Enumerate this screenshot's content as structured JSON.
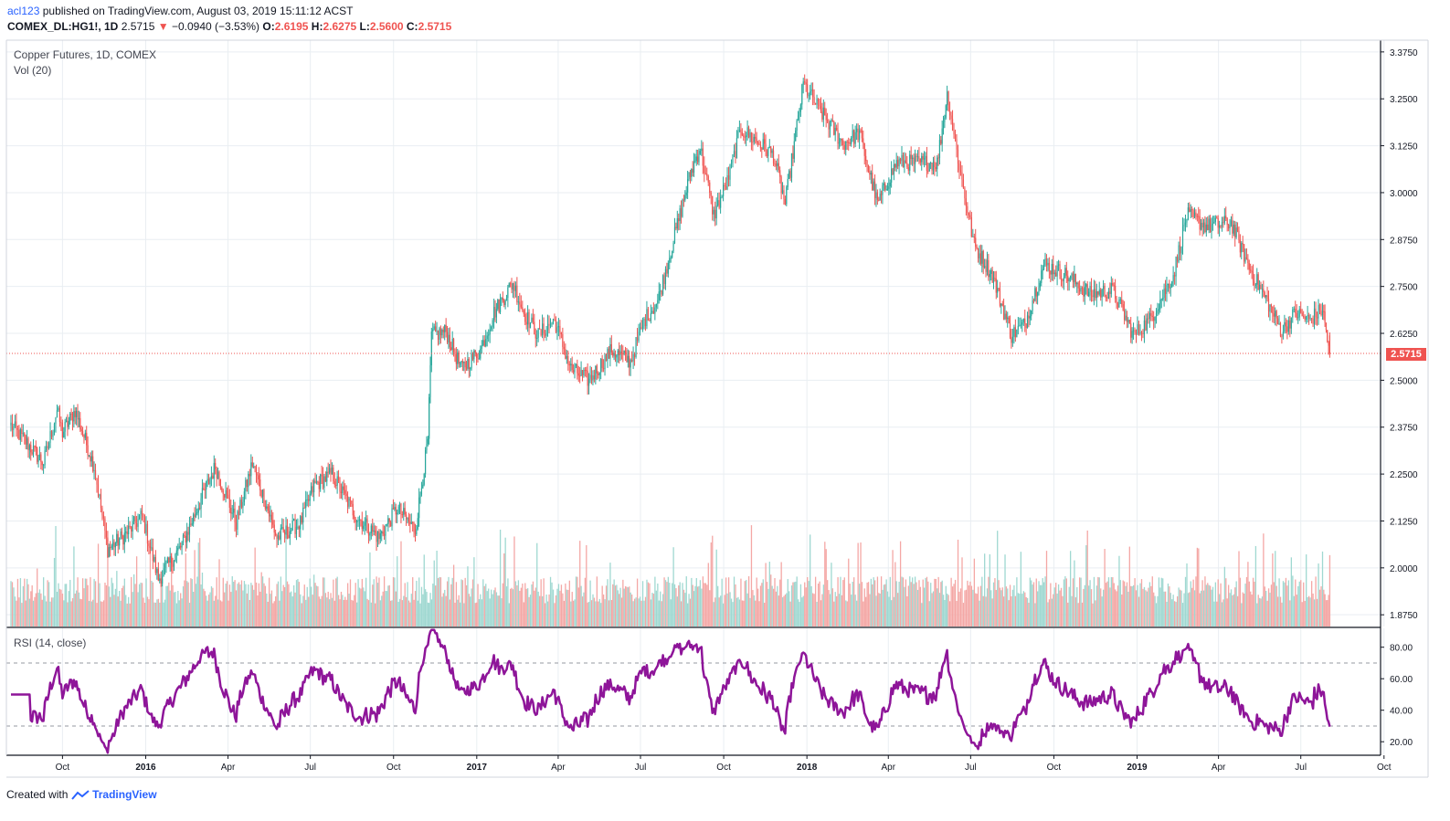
{
  "header": {
    "user": "acl123",
    "published_text": "published on TradingView.com, August 03, 2019 15:11:12 ACST",
    "symbol": "COMEX_DL:HG1!, 1D",
    "last": "2.5715",
    "change_arrow": "▼",
    "change": "−0.0940 (−3.53%)",
    "o_label": "O:",
    "o_val": "2.6195",
    "h_label": "H:",
    "h_val": "2.6275",
    "l_label": "L:",
    "l_val": "2.5600",
    "c_label": "C:",
    "c_val": "2.5715"
  },
  "legends": {
    "main_title": "Copper Futures, 1D, COMEX",
    "volume": "Vol (20)",
    "rsi": "RSI (14, close)"
  },
  "footer": {
    "created": "Created with",
    "brand": "TradingView"
  },
  "colors": {
    "up": "#26a69a",
    "down": "#ef5350",
    "vol_up": "#9fd8d1",
    "vol_down": "#f4a7a5",
    "rsi": "#8e1599",
    "grid": "#e9eef2"
  },
  "chart_data": [
    {
      "type": "candlestick",
      "title": "Copper Futures, 1D, COMEX",
      "ylim": [
        1.8438,
        3.4063
      ],
      "y_ticks": [
        "3.3750",
        "3.2500",
        "3.1250",
        "3.0000",
        "2.8750",
        "2.7500",
        "2.6250",
        "2.5000",
        "2.3750",
        "2.2500",
        "2.1250",
        "2.0000",
        "1.8750"
      ],
      "x_ticks": [
        "Oct",
        "2016",
        "Apr",
        "Jul",
        "Oct",
        "2017",
        "Apr",
        "Jul",
        "Oct",
        "2018",
        "Apr",
        "Jul",
        "Oct",
        "2019",
        "Apr",
        "Jul",
        "Oct"
      ],
      "last_price": "2.5715",
      "close_path": [
        [
          "2015-08-05",
          2.38
        ],
        [
          "2015-08-20",
          2.34
        ],
        [
          "2015-09-10",
          2.28
        ],
        [
          "2015-09-25",
          2.42
        ],
        [
          "2015-10-01",
          2.36
        ],
        [
          "2015-10-15",
          2.42
        ],
        [
          "2015-11-05",
          2.27
        ],
        [
          "2015-11-20",
          2.05
        ],
        [
          "2015-12-10",
          2.09
        ],
        [
          "2015-12-28",
          2.14
        ],
        [
          "2016-01-15",
          1.97
        ],
        [
          "2016-02-10",
          2.06
        ],
        [
          "2016-03-05",
          2.2
        ],
        [
          "2016-03-18",
          2.27
        ],
        [
          "2016-04-10",
          2.12
        ],
        [
          "2016-04-28",
          2.28
        ],
        [
          "2016-05-25",
          2.08
        ],
        [
          "2016-06-20",
          2.12
        ],
        [
          "2016-07-05",
          2.22
        ],
        [
          "2016-07-25",
          2.25
        ],
        [
          "2016-08-20",
          2.14
        ],
        [
          "2016-09-15",
          2.08
        ],
        [
          "2016-10-05",
          2.16
        ],
        [
          "2016-10-25",
          2.1
        ],
        [
          "2016-11-08",
          2.34
        ],
        [
          "2016-11-12",
          2.62
        ],
        [
          "2016-11-28",
          2.63
        ],
        [
          "2016-12-15",
          2.53
        ],
        [
          "2017-01-05",
          2.58
        ],
        [
          "2017-01-20",
          2.68
        ],
        [
          "2017-02-10",
          2.76
        ],
        [
          "2017-02-22",
          2.68
        ],
        [
          "2017-03-10",
          2.62
        ],
        [
          "2017-03-28",
          2.66
        ],
        [
          "2017-04-15",
          2.53
        ],
        [
          "2017-05-05",
          2.5
        ],
        [
          "2017-05-30",
          2.58
        ],
        [
          "2017-06-20",
          2.55
        ],
        [
          "2017-07-05",
          2.66
        ],
        [
          "2017-07-20",
          2.71
        ],
        [
          "2017-08-05",
          2.86
        ],
        [
          "2017-08-25",
          3.05
        ],
        [
          "2017-09-05",
          3.12
        ],
        [
          "2017-09-20",
          2.94
        ],
        [
          "2017-10-05",
          3.03
        ],
        [
          "2017-10-20",
          3.17
        ],
        [
          "2017-11-05",
          3.14
        ],
        [
          "2017-11-25",
          3.1
        ],
        [
          "2017-12-08",
          2.97
        ],
        [
          "2017-12-28",
          3.29
        ],
        [
          "2018-01-15",
          3.22
        ],
        [
          "2018-02-10",
          3.13
        ],
        [
          "2018-02-28",
          3.16
        ],
        [
          "2018-03-20",
          2.97
        ],
        [
          "2018-04-10",
          3.08
        ],
        [
          "2018-05-05",
          3.08
        ],
        [
          "2018-05-25",
          3.08
        ],
        [
          "2018-06-05",
          3.26
        ],
        [
          "2018-06-20",
          3.05
        ],
        [
          "2018-07-05",
          2.86
        ],
        [
          "2018-07-25",
          2.78
        ],
        [
          "2018-08-15",
          2.62
        ],
        [
          "2018-08-30",
          2.65
        ],
        [
          "2018-09-20",
          2.81
        ],
        [
          "2018-10-15",
          2.78
        ],
        [
          "2018-11-10",
          2.73
        ],
        [
          "2018-12-05",
          2.74
        ],
        [
          "2018-12-28",
          2.62
        ],
        [
          "2019-01-15",
          2.66
        ],
        [
          "2019-02-10",
          2.78
        ],
        [
          "2019-02-25",
          2.94
        ],
        [
          "2019-03-20",
          2.91
        ],
        [
          "2019-04-15",
          2.92
        ],
        [
          "2019-05-05",
          2.8
        ],
        [
          "2019-05-25",
          2.71
        ],
        [
          "2019-06-10",
          2.63
        ],
        [
          "2019-06-25",
          2.68
        ],
        [
          "2019-07-10",
          2.66
        ],
        [
          "2019-07-25",
          2.69
        ],
        [
          "2019-08-02",
          2.5715
        ]
      ]
    },
    {
      "type": "bar",
      "title": "Vol (20)",
      "series": "daily volume, colored by candle direction (relative scale, no axis printed)"
    },
    {
      "type": "line",
      "title": "RSI (14, close)",
      "ylim": [
        12,
        92
      ],
      "y_ticks": [
        "80.00",
        "60.00",
        "40.00",
        "20.00"
      ],
      "bands": [
        70,
        30
      ],
      "range_observed": [
        15,
        88
      ]
    }
  ]
}
